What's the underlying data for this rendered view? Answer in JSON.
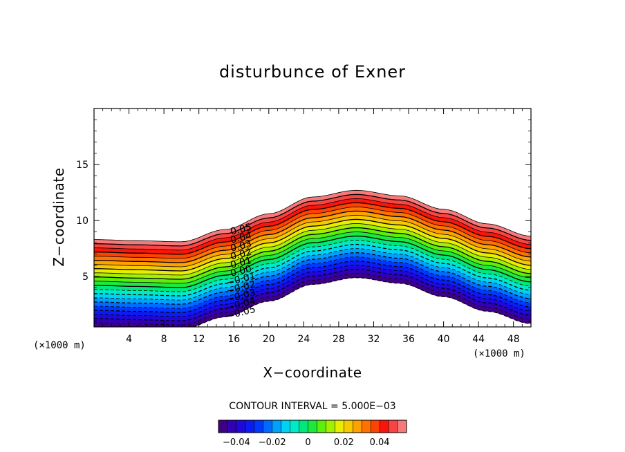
{
  "chart_data": {
    "type": "contour",
    "title": "disturbunce of Exner",
    "xlabel": "X−coordinate",
    "ylabel": "Z−coordinate",
    "x_unit_left": "(×1000 m)",
    "x_unit_right": "(×1000 m)",
    "xlim": [
      0,
      50
    ],
    "ylim": [
      0.5,
      20
    ],
    "x_ticks": [
      "4",
      "8",
      "12",
      "16",
      "20",
      "24",
      "28",
      "32",
      "36",
      "40",
      "44",
      "48"
    ],
    "y_ticks": [
      "5",
      "10",
      "15"
    ],
    "contour_interval_text": "CONTOUR INTERVAL = 5.000E−03",
    "contour_interval": 0.005,
    "levels_min": -0.05,
    "levels_max": 0.055,
    "terrain": {
      "description_values": "z offset of field above flat base, by x",
      "x": [
        0,
        5,
        10,
        15,
        20,
        25,
        30,
        35,
        40,
        45,
        50
      ],
      "offset": [
        0.0,
        -0.1,
        -0.2,
        0.9,
        2.3,
        3.8,
        4.4,
        3.9,
        2.7,
        1.4,
        0.3
      ]
    },
    "field_bottom_z": 0.5,
    "field_top_z": 8.3,
    "contour_labels": [
      "0.05",
      "0.04",
      "0.03",
      "0.02",
      "0.01",
      "0.00",
      "−0.01",
      "−0.02",
      "−0.03",
      "−0.04",
      "−0.05"
    ],
    "colorbar": {
      "range": [
        -0.05,
        0.055
      ],
      "ticks": [
        {
          "value": -0.04,
          "label": "−0.04"
        },
        {
          "value": -0.02,
          "label": "−0.02"
        },
        {
          "value": 0,
          "label": "0"
        },
        {
          "value": 0.02,
          "label": "0.02"
        },
        {
          "value": 0.04,
          "label": "0.04"
        }
      ]
    }
  }
}
